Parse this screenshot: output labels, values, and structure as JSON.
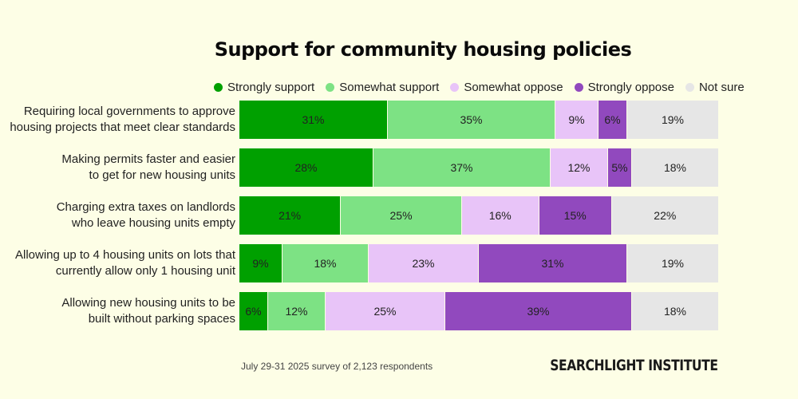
{
  "chart_data": {
    "type": "bar",
    "orientation": "horizontal-stacked",
    "title": "Support for community housing policies",
    "xlabel": "",
    "ylabel": "",
    "legend_position": "top",
    "value_suffix": "%",
    "series": [
      {
        "name": "Strongly support",
        "color": "#00a000"
      },
      {
        "name": "Somewhat support",
        "color": "#7de284"
      },
      {
        "name": "Somewhat oppose",
        "color": "#e8c4f8"
      },
      {
        "name": "Strongly oppose",
        "color": "#9149be"
      },
      {
        "name": "Not sure",
        "color": "#e6e6e6"
      }
    ],
    "categories": [
      {
        "label_lines": [
          "Requiring local governments to approve",
          "housing projects that meet clear standards"
        ],
        "values": [
          31,
          35,
          9,
          6,
          19
        ]
      },
      {
        "label_lines": [
          "Making permits faster and easier",
          "to get for new housing units"
        ],
        "values": [
          28,
          37,
          12,
          5,
          18
        ]
      },
      {
        "label_lines": [
          "Charging extra taxes on landlords",
          "who leave housing units empty"
        ],
        "values": [
          21,
          25,
          16,
          15,
          22
        ]
      },
      {
        "label_lines": [
          "Allowing up to 4 housing units on lots that",
          "currently allow only 1 housing unit"
        ],
        "values": [
          9,
          18,
          23,
          31,
          19
        ]
      },
      {
        "label_lines": [
          "Allowing new housing units to be",
          "built without parking spaces"
        ],
        "values": [
          6,
          12,
          25,
          39,
          18
        ]
      }
    ]
  },
  "footer": {
    "note": "July 29-31 2025 survey of 2,123 respondents",
    "brand": "SEARCHLIGHT INSTITUTE"
  }
}
